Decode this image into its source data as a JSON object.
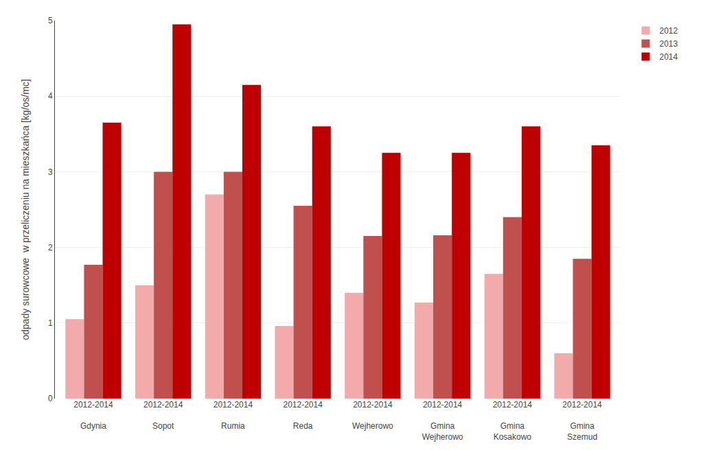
{
  "chart_data": {
    "type": "bar",
    "categories": [
      "2012-2014\n\nGdynia",
      "2012-2014\n\nSopot",
      "2012-2014\n\nRumia",
      "2012-2014\n\nReda",
      "2012-2014\n\nWejherowo",
      "2012-2014\n\nGmina\nWejherowo",
      "2012-2014\n\nGmina\nKosakowo",
      "2012-2014\n\nGmina\nSzemud"
    ],
    "series": [
      {
        "name": "2012",
        "color": "#f2aaaa",
        "values": [
          1.05,
          1.5,
          2.7,
          0.96,
          1.4,
          1.27,
          1.65,
          0.6
        ]
      },
      {
        "name": "2013",
        "color": "#c0504d",
        "values": [
          1.77,
          3.0,
          3.0,
          2.55,
          2.15,
          2.16,
          2.4,
          1.85
        ]
      },
      {
        "name": "2014",
        "color": "#be0000",
        "values": [
          3.65,
          4.95,
          4.15,
          3.6,
          3.25,
          3.25,
          3.6,
          3.35
        ]
      }
    ],
    "ylabel": "odpady surowcowe  w przeliczeniu na mieszkańca [kg/os/mc]",
    "ylim": [
      0,
      5
    ],
    "yticks": [
      0,
      1,
      2,
      3,
      4,
      5
    ],
    "grid": true,
    "legend": "upper right"
  }
}
